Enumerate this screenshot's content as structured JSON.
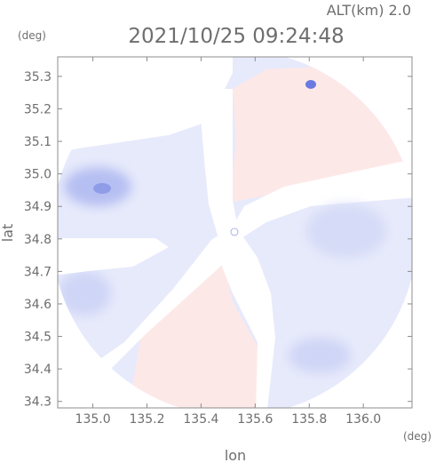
{
  "header": {
    "altitude_label": "ALT(km) 2.0",
    "timestamp": "2021/10/25 09:24:48"
  },
  "chart_data": {
    "type": "heatmap",
    "title": "2021/10/25 09:24:48",
    "subtitle": "ALT(km) 2.0",
    "xlabel": "lon",
    "ylabel": "lat",
    "x_unit": "(deg)",
    "y_unit": "(deg)",
    "xlim": [
      134.87,
      136.18
    ],
    "ylim": [
      34.28,
      35.36
    ],
    "xticks": [
      135.0,
      135.2,
      135.4,
      135.6,
      135.8,
      136.0
    ],
    "xtick_labels": [
      "135.0",
      "135.2",
      "135.4",
      "135.6",
      "135.8",
      "136.0"
    ],
    "yticks": [
      34.3,
      34.4,
      34.5,
      34.6,
      34.7,
      34.8,
      34.9,
      35.0,
      35.1,
      35.2,
      35.3
    ],
    "ytick_labels": [
      "34.3",
      "34.4",
      "34.5",
      "34.6",
      "34.7",
      "34.8",
      "34.9",
      "35.0",
      "35.1",
      "35.2",
      "35.3"
    ],
    "grid": false,
    "legend": "none",
    "radar_site": {
      "lon": 135.52,
      "lat": 34.81
    },
    "colors": {
      "approaching": "#e6e9fb",
      "approaching_strong": "#aab4ef",
      "receding": "#fce8e8",
      "no_echo": "#ffffff",
      "axis": "#8c8c8c",
      "text": "#6e6e6e"
    }
  }
}
